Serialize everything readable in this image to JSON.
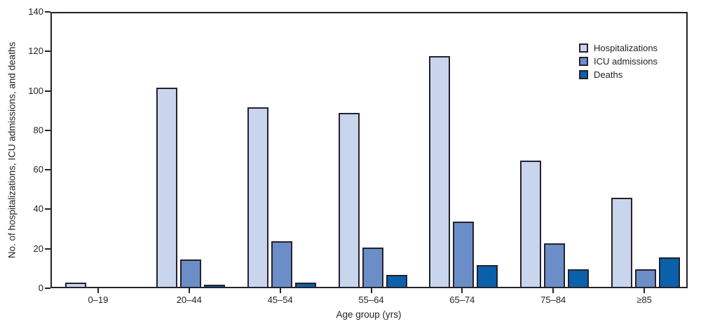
{
  "chart_data": {
    "type": "bar",
    "title": "",
    "categories": [
      "0–19",
      "20–44",
      "45–54",
      "55–64",
      "65–74",
      "75–84",
      "≥85"
    ],
    "series": [
      {
        "name": "Hospitalizations",
        "color": "#c9d5ed",
        "values": [
          2,
          101,
          91,
          88,
          117,
          64,
          45
        ]
      },
      {
        "name": "ICU admissions",
        "color": "#6c8ec8",
        "values": [
          0,
          14,
          23,
          20,
          33,
          22,
          9
        ]
      },
      {
        "name": "Deaths",
        "color": "#0b60ab",
        "values": [
          0,
          1,
          2,
          6,
          11,
          9,
          15
        ]
      }
    ],
    "xlabel": "Age group (yrs)",
    "ylabel": "No. of hospitalizations, ICU admissions, and deaths",
    "ylim": [
      0,
      140
    ],
    "yticks": [
      0,
      20,
      40,
      60,
      80,
      100,
      120,
      140
    ],
    "grid": false,
    "legend_position": "top-right"
  },
  "style": {
    "axis_color": "#25222d",
    "text_color": "#231f20",
    "background": "#ffffff"
  }
}
